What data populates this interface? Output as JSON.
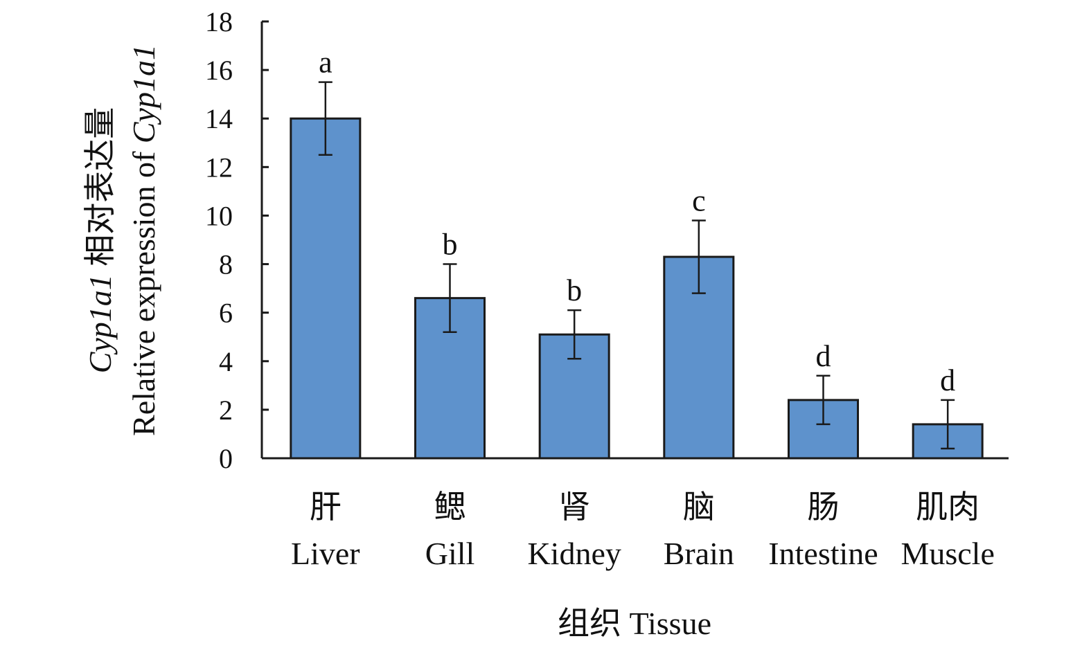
{
  "chart_data": {
    "type": "bar",
    "categories": [
      {
        "zh": "肝",
        "en": "Liver"
      },
      {
        "zh": "鳃",
        "en": "Gill"
      },
      {
        "zh": "肾",
        "en": "Kidney"
      },
      {
        "zh": "脑",
        "en": "Brain"
      },
      {
        "zh": "肠",
        "en": "Intestine"
      },
      {
        "zh": "肌肉",
        "en": "Muscle"
      }
    ],
    "values": [
      14.0,
      6.6,
      5.1,
      8.3,
      2.4,
      1.4
    ],
    "errors": [
      1.5,
      1.4,
      1.0,
      1.5,
      1.0,
      1.0
    ],
    "significance": [
      "a",
      "b",
      "b",
      "c",
      "d",
      "d"
    ],
    "ylim": [
      0,
      18
    ],
    "yticks": [
      0,
      2,
      4,
      6,
      8,
      10,
      12,
      14,
      16,
      18
    ],
    "ylabel_line1_italic": "Cyp1a1",
    "ylabel_line1_rest": " 相对表达量",
    "ylabel_line2_prefix": "Relative expression of ",
    "ylabel_line2_italic": "Cyp1a1",
    "xlabel": "组织 Tissue",
    "grid": false,
    "bar_color": "#5e92cc"
  }
}
